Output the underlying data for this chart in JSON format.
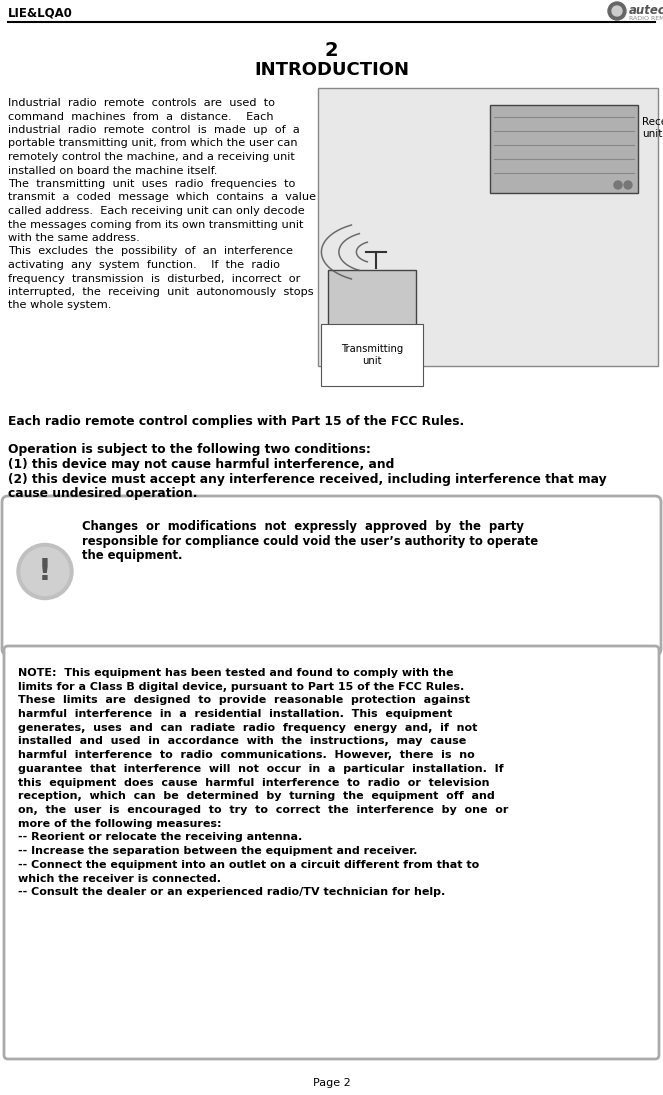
{
  "page_label": "LIE&LQA0",
  "page_number": "Page 2",
  "chapter_num": "2",
  "chapter_title": "INTRODUCTION",
  "bg_color": "#ffffff",
  "text_color": "#000000",
  "transmitting_label": "Transmitting\nunit",
  "receiving_label": "Receiving\nunit",
  "body_lines": [
    "Industrial  radio  remote  controls  are  used  to",
    "command  machines  from  a  distance.    Each",
    "industrial  radio  remote  control  is  made  up  of  a",
    "portable transmitting unit, from which the user can",
    "remotely control the machine, and a receiving unit",
    "installed on board the machine itself.",
    "The  transmitting  unit  uses  radio  frequencies  to",
    "transmit  a  coded  message  which  contains  a  value",
    "called address.  Each receiving unit can only decode",
    "the messages coming from its own transmitting unit",
    "with the same address.",
    "This  excludes  the  possibility  of  an  interference",
    "activating  any  system  function.    If  the  radio",
    "frequency  transmission  is  disturbed,  incorrect  or",
    "interrupted,  the  receiving  unit  autonomously  stops",
    "the whole system."
  ],
  "fcc_bold": "Each radio remote control complies with Part 15 of the FCC Rules.",
  "fcc_conditions_title": "Operation is subject to the following two conditions:",
  "fcc_cond1": "(1) this device may not cause harmful interference, and",
  "fcc_cond2a": "(2) this device must accept any interference received, including interference that may",
  "fcc_cond2b": "cause undesired operation.",
  "warning_lines": [
    "Changes  or  modifications  not  expressly  approved  by  the  party",
    "responsible for compliance could void the user’s authority to operate",
    "the equipment."
  ],
  "note_lines": [
    "NOTE:  This equipment has been tested and found to comply with the",
    "limits for a Class B digital device, pursuant to Part 15 of the FCC Rules.",
    "These  limits  are  designed  to  provide  reasonable  protection  against",
    "harmful  interference  in  a  residential  installation.  This  equipment",
    "generates,  uses  and  can  radiate  radio  frequency  energy  and,  if  not",
    "installed  and  used  in  accordance  with  the  instructions,  may  cause",
    "harmful  interference  to  radio  communications.  However,  there  is  no",
    "guarantee  that  interference  will  not  occur  in  a  particular  installation.  If",
    "this  equipment  does  cause  harmful  interference  to  radio  or  television",
    "reception,  which  can  be  determined  by  turning  the  equipment  off  and",
    "on,  the  user  is  encouraged  to  try  to  correct  the  interference  by  one  or",
    "more of the following measures:",
    "-- Reorient or relocate the receiving antenna.",
    "-- Increase the separation between the equipment and receiver.",
    "-- Connect the equipment into an outlet on a circuit different from that to",
    "which the receiver is connected.",
    "-- Consult the dealer or an experienced radio/TV technician for help."
  ]
}
